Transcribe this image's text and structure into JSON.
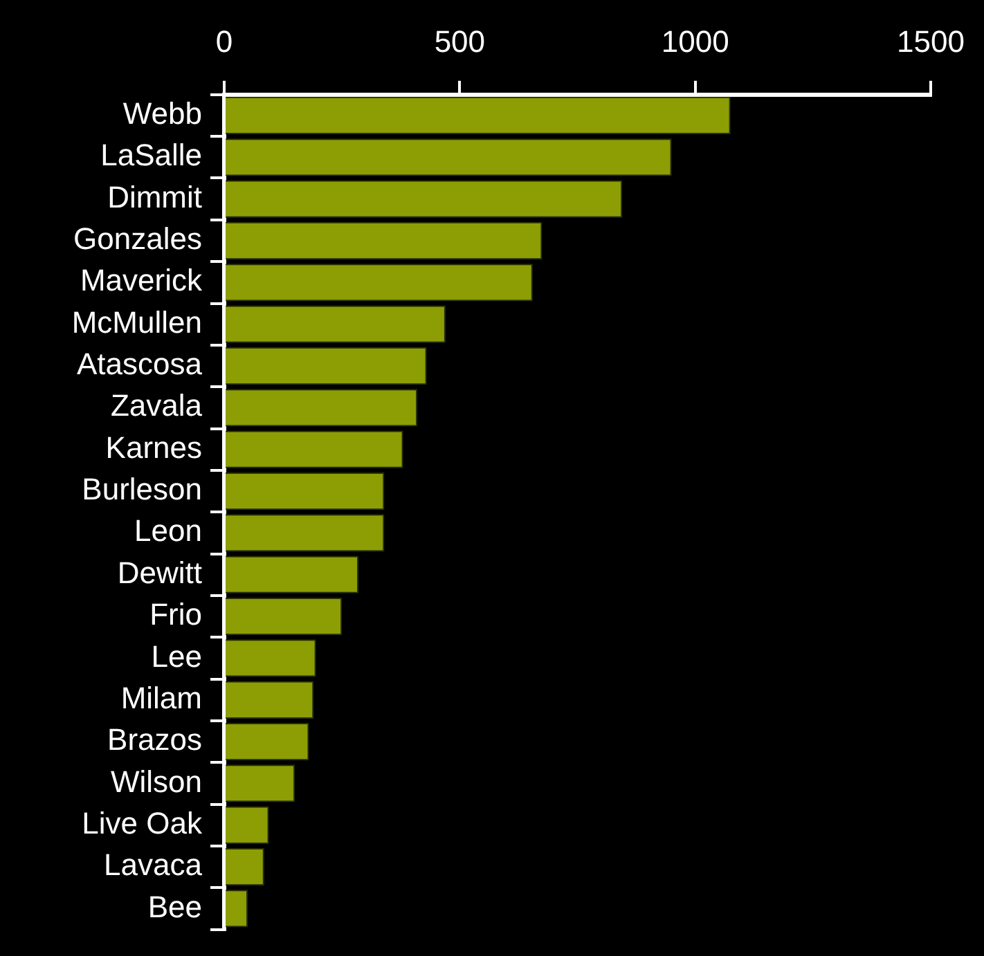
{
  "chart_data": {
    "type": "bar",
    "orientation": "horizontal",
    "categories": [
      "Webb",
      "LaSalle",
      "Dimmit",
      "Gonzales",
      "Maverick",
      "McMullen",
      "Atascosa",
      "Zavala",
      "Karnes",
      "Burleson",
      "Leon",
      "Dewitt",
      "Frio",
      "Lee",
      "Milam",
      "Brazos",
      "Wilson",
      "Live Oak",
      "Lavaca",
      "Bee"
    ],
    "values": [
      1075,
      950,
      845,
      675,
      655,
      470,
      430,
      410,
      380,
      340,
      340,
      285,
      250,
      195,
      190,
      180,
      150,
      95,
      85,
      50
    ],
    "color": "#8c9e04",
    "xlim": [
      0,
      1500
    ],
    "xticks": [
      0,
      500,
      1000,
      1500
    ],
    "grid": false,
    "legend": false
  }
}
